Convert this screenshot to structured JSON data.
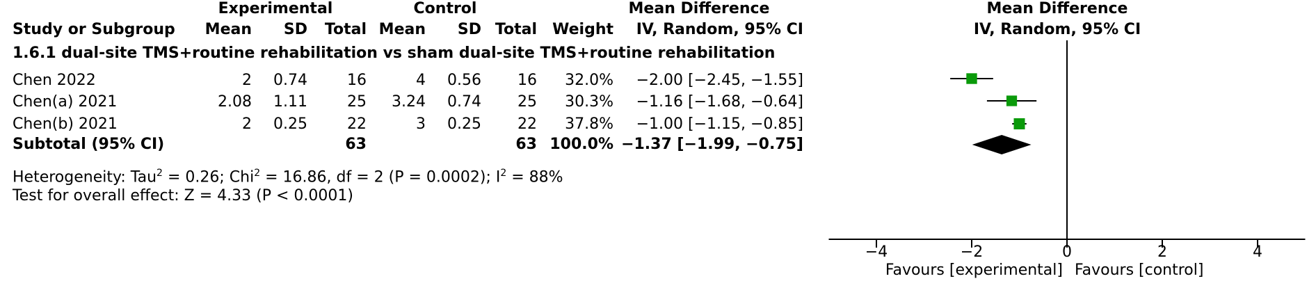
{
  "header": {
    "experimental": "Experimental",
    "control": "Control",
    "md_table": "Mean Difference",
    "md_plot": "Mean Difference",
    "study": "Study or Subgroup",
    "exp_mean": "Mean",
    "exp_sd": "SD",
    "exp_total": "Total",
    "ctl_mean": "Mean",
    "ctl_sd": "SD",
    "ctl_total": "Total",
    "weight": "Weight",
    "method_table": "IV, Random, 95% CI",
    "method_plot": "IV, Random, 95% CI"
  },
  "subgroup_title": "1.6.1 dual-site TMS+routine rehabilitation vs sham dual-site TMS+routine rehabilitation",
  "studies": [
    {
      "name": "Chen 2022",
      "exp_mean": "2",
      "exp_sd": "0.74",
      "exp_total": "16",
      "ctl_mean": "4",
      "ctl_sd": "0.56",
      "ctl_total": "16",
      "weight": "32.0%",
      "ci": "−2.00 [−2.45, −1.55]"
    },
    {
      "name": "Chen(a) 2021",
      "exp_mean": "2.08",
      "exp_sd": "1.11",
      "exp_total": "25",
      "ctl_mean": "3.24",
      "ctl_sd": "0.74",
      "ctl_total": "25",
      "weight": "30.3%",
      "ci": "−1.16 [−1.68, −0.64]"
    },
    {
      "name": "Chen(b) 2021",
      "exp_mean": "2",
      "exp_sd": "0.25",
      "exp_total": "22",
      "ctl_mean": "3",
      "ctl_sd": "0.25",
      "ctl_total": "22",
      "weight": "37.8%",
      "ci": "−1.00 [−1.15, −0.85]"
    }
  ],
  "subtotal": {
    "name": "Subtotal (95% CI)",
    "exp_total": "63",
    "ctl_total": "63",
    "weight": "100.0%",
    "ci": "−1.37 [−1.99, −0.75]"
  },
  "heterogeneity": {
    "prefix": "Heterogeneity: Tau",
    "tau2": "2",
    "mid1": " = 0.26; Chi",
    "chi2": "2",
    "mid2": " = 16.86, df = 2 (P = 0.0002); I",
    "i2": "2",
    "end": " = 88%"
  },
  "overall_effect": "Test for overall effect: Z = 4.33 (P < 0.0001)",
  "favours_left": "Favours [experimental]",
  "favours_right": "Favours [control]",
  "colors": {
    "marker": "#0a9a0a",
    "diamond": "#000000"
  },
  "chart_data": {
    "type": "forest",
    "xlim": [
      -5,
      5
    ],
    "ticks": [
      -4,
      -2,
      0,
      2,
      4
    ],
    "tick_labels": [
      "−4",
      "−2",
      "0",
      "2",
      "4"
    ],
    "points": [
      {
        "study": "Chen 2022",
        "md": -2.0,
        "lo": -2.45,
        "hi": -1.55,
        "weight": 32.0
      },
      {
        "study": "Chen(a) 2021",
        "md": -1.16,
        "lo": -1.68,
        "hi": -0.64,
        "weight": 30.3
      },
      {
        "study": "Chen(b) 2021",
        "md": -1.0,
        "lo": -1.15,
        "hi": -0.85,
        "weight": 37.8
      }
    ],
    "pooled": {
      "md": -1.37,
      "lo": -1.99,
      "hi": -0.75
    }
  }
}
